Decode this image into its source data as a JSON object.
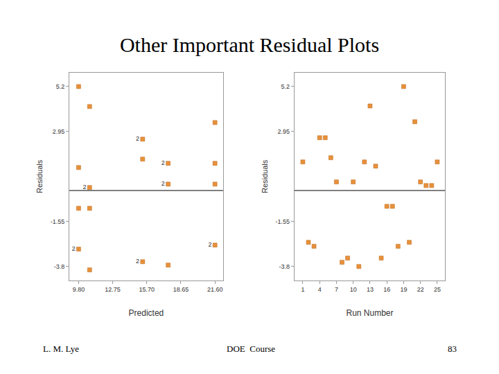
{
  "title": "Other Important Residual Plots",
  "footer": {
    "left": "L. M. Lye",
    "center": "DOE  Course",
    "right": "83"
  },
  "chart_data": [
    {
      "type": "scatter",
      "xlabel": "Predicted",
      "ylabel": "Residuals",
      "x": [
        9.8,
        10.75,
        21.6,
        15.34,
        15.34,
        17.55,
        21.6,
        9.8,
        17.55,
        21.6,
        10.75,
        9.8,
        10.75,
        9.8,
        21.6,
        15.34,
        17.55,
        10.75
      ],
      "values": [
        5.2,
        4.2,
        3.4,
        2.57,
        1.57,
        1.36,
        1.36,
        1.15,
        0.32,
        0.32,
        0.15,
        -0.89,
        -0.89,
        -2.93,
        -2.73,
        -3.56,
        -3.73,
        -3.97
      ],
      "multiplicity": [
        null,
        null,
        null,
        2,
        null,
        2,
        null,
        null,
        2,
        null,
        2,
        null,
        null,
        2,
        2,
        2,
        null,
        null
      ],
      "hline": 0,
      "xlim": [
        9.0,
        22.3
      ],
      "ylim": [
        -4.5,
        5.9
      ],
      "xticks": [
        {
          "value": 9.8,
          "label": "9.80"
        },
        12.75,
        {
          "value": 15.7,
          "label": "15.70"
        },
        18.65,
        {
          "value": 21.6,
          "label": "21.60"
        }
      ],
      "yticks": [
        5.2,
        2.95,
        -1.55,
        -3.8
      ],
      "color": "#e8913a",
      "marker": "square",
      "grid": false
    },
    {
      "type": "scatter",
      "xlabel": "Run Number",
      "ylabel": "Residuals",
      "x": [
        1,
        2,
        3,
        4,
        5,
        6,
        7,
        8,
        9,
        10,
        11,
        12,
        13,
        14,
        15,
        16,
        17,
        18,
        19,
        20,
        21,
        22,
        23,
        24,
        25
      ],
      "values": [
        1.43,
        -2.59,
        -2.79,
        2.64,
        2.64,
        1.64,
        0.43,
        -3.59,
        -3.38,
        0.43,
        -3.8,
        1.43,
        4.23,
        1.22,
        -3.38,
        -0.79,
        -0.79,
        -2.79,
        5.2,
        -2.59,
        3.44,
        0.43,
        0.25,
        0.25,
        1.43
      ],
      "hline": 0,
      "xlim": [
        -0.5,
        26.4
      ],
      "ylim": [
        -4.5,
        5.9
      ],
      "xticks": [
        1,
        4,
        7,
        10,
        13,
        16,
        19,
        22,
        25
      ],
      "yticks": [
        5.2,
        2.95,
        -1.55,
        -3.8
      ],
      "color": "#e8913a",
      "marker": "square",
      "grid": false
    }
  ]
}
